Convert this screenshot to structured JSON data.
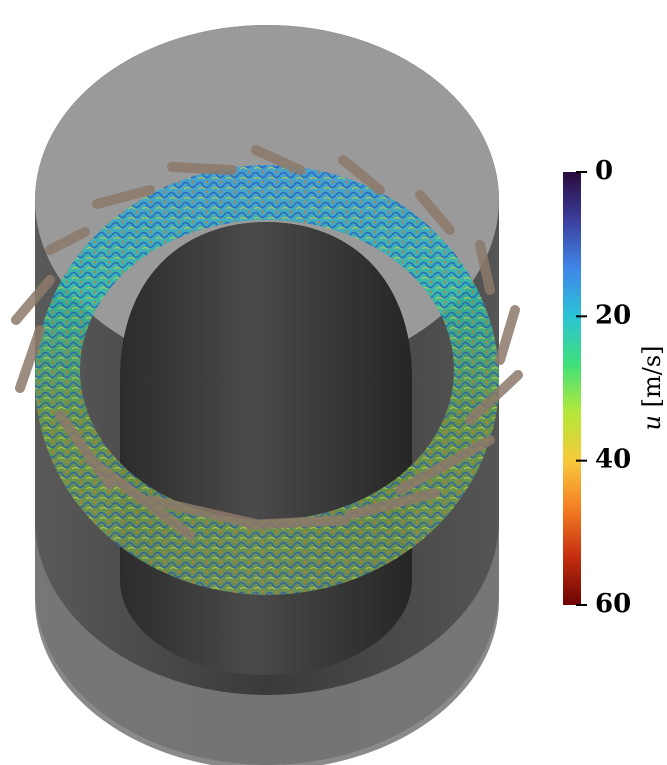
{
  "colorbar": {
    "symbol": "u",
    "unit": "[m/s]",
    "lim": [
      0,
      60
    ],
    "ticks": [
      0,
      20,
      40,
      60
    ],
    "colors": [
      "#2a0a3c",
      "#3b3f9e",
      "#3f86e8",
      "#2bc3d6",
      "#3fe07a",
      "#b5e83a",
      "#f6c93b",
      "#f57e24",
      "#c52d0e",
      "#6b0404"
    ]
  }
}
